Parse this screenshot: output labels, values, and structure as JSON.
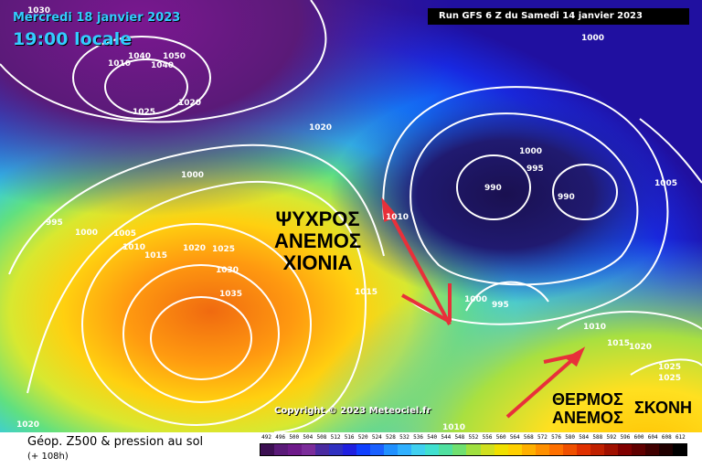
{
  "header": {
    "date": "Mercredi 18 janvier 2023",
    "time": "19:00 locale",
    "run": "Run GFS 6 Z du Samedi 14 janvier 2023"
  },
  "annotations": {
    "cold_line1": "ΨΥΧΡΟΣ",
    "cold_line2": "ΑΝΕΜΟΣ",
    "cold_line3": "ΧΙΟΝΙΑ",
    "warm_line1": "ΘΕΡΜΟΣ",
    "warm_line2": "ΑΝΕΜΟΣ",
    "dust": "ΣΚΟΝΗ"
  },
  "colors": {
    "arrow": "#e8303a",
    "isobar": "#ffffff"
  },
  "copyright": "Copyright © 2023 Meteociel.fr",
  "footer": {
    "title": "Géop. Z500 & pression au sol",
    "subtitle": "(+ 108h)"
  },
  "scale": {
    "ticks": [
      "492",
      "496",
      "500",
      "504",
      "508",
      "512",
      "516",
      "520",
      "524",
      "528",
      "532",
      "536",
      "540",
      "544",
      "548",
      "552",
      "556",
      "560",
      "564",
      "568",
      "572",
      "576",
      "580",
      "584",
      "588",
      "592",
      "596",
      "600",
      "604",
      "608",
      "612"
    ],
    "colors": [
      "#3c0f52",
      "#5a1a78",
      "#6e1a8a",
      "#7b2c9a",
      "#4a2aa0",
      "#3030c0",
      "#2020e0",
      "#1040ff",
      "#1a60ff",
      "#2090ff",
      "#30b0ff",
      "#40d0f0",
      "#40e0d0",
      "#50e0a0",
      "#70e070",
      "#a0e040",
      "#d0e020",
      "#f0e000",
      "#ffd000",
      "#ffb000",
      "#ff9000",
      "#ff7000",
      "#f05000",
      "#e03000",
      "#c02000",
      "#a01000",
      "#800000",
      "#600000",
      "#400000",
      "#200000",
      "#000000"
    ]
  },
  "pressure_labels": [
    "1030",
    "1040",
    "1050",
    "1040",
    "1010",
    "1025",
    "1020",
    "1020",
    "1000",
    "995",
    "1000",
    "1005",
    "1010",
    "1015",
    "1020",
    "1025",
    "1030",
    "1035",
    "1015",
    "1010",
    "1000",
    "995",
    "990",
    "990",
    "1000",
    "995",
    "1000",
    "1005",
    "1000",
    "995",
    "1010",
    "1015",
    "1020",
    "1025",
    "1025",
    "1010",
    "1020"
  ]
}
